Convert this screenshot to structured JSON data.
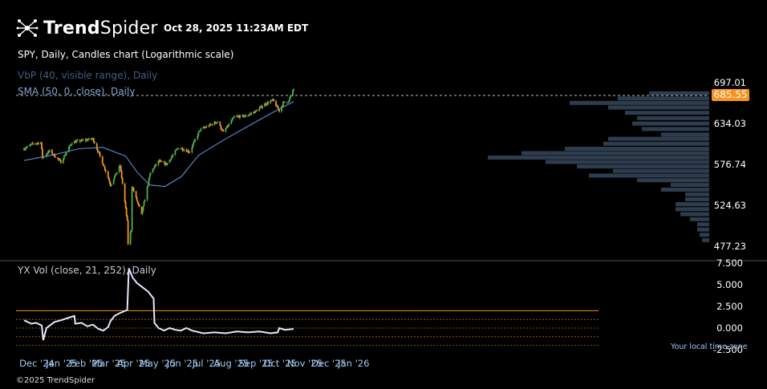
{
  "header": {
    "brand_bold": "Trend",
    "brand_light": "Spider",
    "timestamp": "Oct 28, 2025 11:23AM EDT",
    "logo_icon": "spider-node-icon"
  },
  "chart_title": "SPY, Daily, Candles chart (Logarithmic scale)",
  "indicators": {
    "vbp": "VbP (40, visible range), Daily",
    "sma": "SMA (50, 0, close), Daily",
    "vol": "YX Vol (close, 21, 252), Daily"
  },
  "footer": {
    "copyright": "©2025 TrendSpider",
    "timezone": "Your local time zone"
  },
  "colors": {
    "up": "#4caf50",
    "down": "#f7931e",
    "sma": "#5b8fc9",
    "vbp": "#2e3d4e",
    "vol_line": "#e6e6ff",
    "level_line": "#f7931e",
    "badge": "#f7931e"
  },
  "chart_data": [
    {
      "type": "candlestick",
      "title": "SPY, Daily, Candles chart (Logarithmic scale)",
      "scale": "log",
      "x_tick_labels": [
        "Dec '24",
        "Jan '25",
        "Feb '25",
        "Mar '25",
        "Apr '25",
        "May '25",
        "Jun '25",
        "Jul '25",
        "Aug '25",
        "Sep '25",
        "Oct '25",
        "Nov '25",
        "Dec '25",
        "Jan '26"
      ],
      "y_tick_labels": [
        "697.01",
        "634.03",
        "576.74",
        "524.63",
        "477.23"
      ],
      "current_price": "685.55",
      "ylim": [
        470,
        700
      ],
      "close_series": {
        "dates": [
          "2024-11-25",
          "2024-12-06",
          "2024-12-16",
          "2024-12-18",
          "2024-12-27",
          "2025-01-10",
          "2025-01-24",
          "2025-02-19",
          "2025-03-10",
          "2025-03-13",
          "2025-03-25",
          "2025-04-03",
          "2025-04-04",
          "2025-04-08",
          "2025-04-09",
          "2025-04-21",
          "2025-05-02",
          "2025-05-12",
          "2025-05-22",
          "2025-06-06",
          "2025-06-20",
          "2025-07-03",
          "2025-07-25",
          "2025-08-01",
          "2025-08-15",
          "2025-08-29",
          "2025-09-10",
          "2025-09-22",
          "2025-10-02",
          "2025-10-10",
          "2025-10-15",
          "2025-10-22",
          "2025-10-27",
          "2025-10-28"
        ],
        "close": [
          598,
          605,
          607,
          586,
          595,
          580,
          607,
          612,
          560,
          550,
          575,
          505,
          480,
          496,
          548,
          513,
          566,
          581,
          577,
          600,
          594,
          625,
          637,
          621,
          644,
          645,
          652,
          663,
          669,
          653,
          665,
          668,
          685,
          687
        ]
      },
      "sma_50": {
        "dates": [
          "2024-11-25",
          "2025-01-02",
          "2025-02-01",
          "2025-03-03",
          "2025-04-01",
          "2025-04-15",
          "2025-05-01",
          "2025-05-20",
          "2025-06-10",
          "2025-07-01",
          "2025-08-01",
          "2025-09-01",
          "2025-10-01",
          "2025-10-28"
        ],
        "values": [
          582,
          590,
          598,
          600,
          588,
          567,
          550,
          548,
          561,
          589,
          610,
          630,
          650,
          667
        ]
      },
      "volume_profile": {
        "price_levels": [
          680,
          672,
          665,
          658,
          650,
          642,
          634,
          626,
          618,
          612,
          605,
          598,
          592,
          586,
          580,
          574,
          568,
          562,
          556,
          550,
          544,
          538,
          532,
          526,
          520,
          514,
          508,
          502,
          496,
          490,
          484
        ],
        "relative_volume": [
          0.25,
          0.38,
          0.58,
          0.42,
          0.35,
          0.3,
          0.32,
          0.28,
          0.2,
          0.42,
          0.44,
          0.6,
          0.78,
          0.92,
          0.68,
          0.55,
          0.4,
          0.5,
          0.3,
          0.16,
          0.2,
          0.1,
          0.1,
          0.14,
          0.14,
          0.12,
          0.08,
          0.05,
          0.05,
          0.04,
          0.03
        ]
      }
    },
    {
      "type": "line",
      "title": "YX Vol (close, 21, 252), Daily",
      "y_tick_labels": [
        "7.500",
        "5.000",
        "2.500",
        "0.000",
        "-2.500"
      ],
      "ylim": [
        -2.5,
        7.5
      ],
      "levels": [
        2.0,
        1.0,
        0.0,
        -1.0,
        -2.0
      ],
      "dates": [
        "2024-11-25",
        "2024-12-04",
        "2024-12-10",
        "2024-12-17",
        "2024-12-19",
        "2024-12-23",
        "2025-01-02",
        "2025-01-10",
        "2025-01-20",
        "2025-01-27",
        "2025-01-28",
        "2025-02-05",
        "2025-02-12",
        "2025-02-19",
        "2025-02-26",
        "2025-03-04",
        "2025-03-10",
        "2025-03-13",
        "2025-03-18",
        "2025-03-24",
        "2025-04-01",
        "2025-04-03",
        "2025-04-05",
        "2025-04-08",
        "2025-04-10",
        "2025-04-15",
        "2025-04-22",
        "2025-04-29",
        "2025-05-06",
        "2025-05-07",
        "2025-05-12",
        "2025-05-19",
        "2025-05-26",
        "2025-06-02",
        "2025-06-09",
        "2025-06-16",
        "2025-06-23",
        "2025-07-07",
        "2025-07-21",
        "2025-08-04",
        "2025-08-18",
        "2025-09-01",
        "2025-09-15",
        "2025-09-29",
        "2025-10-08",
        "2025-10-10",
        "2025-10-17",
        "2025-10-28"
      ],
      "values": [
        0.9,
        0.5,
        0.6,
        0.3,
        -1.4,
        0.0,
        0.7,
        0.9,
        1.2,
        1.4,
        0.5,
        0.6,
        0.2,
        0.4,
        -0.1,
        -0.3,
        0.1,
        0.8,
        1.4,
        1.7,
        2.0,
        2.1,
        6.9,
        6.2,
        5.8,
        5.2,
        4.7,
        4.2,
        3.4,
        0.6,
        0.0,
        -0.3,
        0.0,
        -0.2,
        -0.3,
        0.0,
        -0.3,
        -0.6,
        -0.5,
        -0.6,
        -0.4,
        -0.5,
        -0.4,
        -0.6,
        -0.5,
        0.0,
        -0.2,
        -0.1
      ]
    }
  ]
}
